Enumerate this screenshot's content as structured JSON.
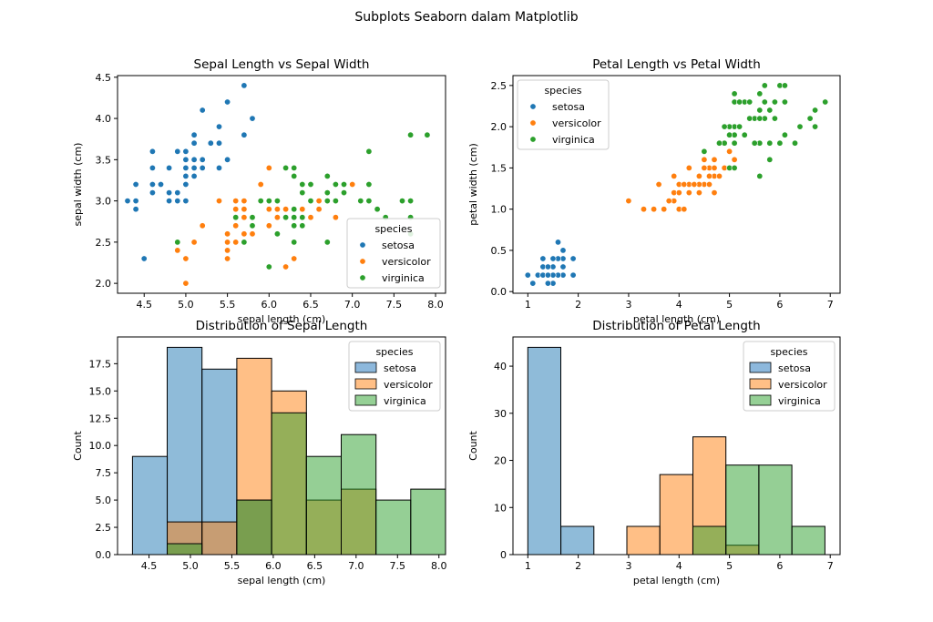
{
  "figure": {
    "suptitle": "Subplots Seaborn dalam Matplotlib"
  },
  "colors": {
    "setosa": "#1f77b4",
    "versicolor": "#ff7f0e",
    "virginica": "#2ca02c",
    "setosa_hist": "#8db8dc",
    "versicolor_hist": "#ffbf86",
    "virginica_hist": "#95d095"
  },
  "chart_data": [
    {
      "type": "scatter",
      "title": "Sepal Length vs Sepal Width",
      "xlabel": "sepal length (cm)",
      "ylabel": "sepal width (cm)",
      "xlim": [
        4.18,
        8.12
      ],
      "ylim": [
        1.88,
        4.52
      ],
      "xticks": [
        "4.5",
        "5.0",
        "5.5",
        "6.0",
        "6.5",
        "7.0",
        "7.5",
        "8.0"
      ],
      "yticks": [
        "2.0",
        "2.5",
        "3.0",
        "3.5",
        "4.0",
        "4.5"
      ],
      "legend": {
        "title": "species",
        "placement": "lower right",
        "entries": [
          "setosa",
          "versicolor",
          "virginica"
        ]
      },
      "series": [
        {
          "name": "setosa",
          "x": [
            5.1,
            4.9,
            4.7,
            4.6,
            5.0,
            5.4,
            4.6,
            5.0,
            4.4,
            4.9,
            5.4,
            4.8,
            4.8,
            4.3,
            5.8,
            5.7,
            5.4,
            5.1,
            5.7,
            5.1,
            5.4,
            5.1,
            4.6,
            5.1,
            4.8,
            5.0,
            5.0,
            5.2,
            5.2,
            4.7,
            4.8,
            5.4,
            5.2,
            5.5,
            4.9,
            5.0,
            5.5,
            4.9,
            4.4,
            5.1,
            5.0,
            4.5,
            4.4,
            5.0,
            5.1,
            4.8,
            5.1,
            4.6,
            5.3,
            5.0
          ],
          "y": [
            3.5,
            3.0,
            3.2,
            3.1,
            3.6,
            3.9,
            3.4,
            3.4,
            2.9,
            3.1,
            3.7,
            3.4,
            3.0,
            3.0,
            4.0,
            4.4,
            3.9,
            3.5,
            3.8,
            3.8,
            3.4,
            3.7,
            3.6,
            3.3,
            3.4,
            3.0,
            3.4,
            3.5,
            3.4,
            3.2,
            3.1,
            3.4,
            4.1,
            4.2,
            3.1,
            3.2,
            3.5,
            3.6,
            3.0,
            3.4,
            3.5,
            2.3,
            3.2,
            3.5,
            3.8,
            3.0,
            3.8,
            3.2,
            3.7,
            3.3
          ]
        },
        {
          "name": "versicolor",
          "x": [
            7.0,
            6.4,
            6.9,
            5.5,
            6.5,
            5.7,
            6.3,
            4.9,
            6.6,
            5.2,
            5.0,
            5.9,
            6.0,
            6.1,
            5.6,
            6.7,
            5.6,
            5.8,
            6.2,
            5.6,
            5.9,
            6.1,
            6.3,
            6.1,
            6.4,
            6.6,
            6.8,
            6.7,
            6.0,
            5.7,
            5.5,
            5.5,
            5.8,
            6.0,
            5.4,
            6.0,
            6.7,
            6.3,
            5.6,
            5.5,
            5.5,
            6.1,
            5.8,
            5.0,
            5.6,
            5.7,
            5.7,
            6.2,
            5.1,
            5.7
          ],
          "y": [
            3.2,
            3.2,
            3.1,
            2.3,
            2.8,
            2.8,
            3.3,
            2.4,
            2.9,
            2.7,
            2.0,
            3.0,
            2.2,
            2.9,
            2.9,
            3.1,
            3.0,
            2.7,
            2.2,
            2.5,
            3.2,
            2.8,
            2.5,
            2.8,
            2.9,
            3.0,
            2.8,
            3.0,
            2.9,
            2.6,
            2.4,
            2.4,
            2.7,
            2.7,
            3.0,
            3.4,
            3.1,
            2.3,
            3.0,
            2.5,
            2.6,
            3.0,
            2.6,
            2.3,
            2.7,
            3.0,
            2.9,
            2.9,
            2.5,
            2.8
          ]
        },
        {
          "name": "virginica",
          "x": [
            6.3,
            5.8,
            7.1,
            6.3,
            6.5,
            7.6,
            4.9,
            7.3,
            6.7,
            7.2,
            6.5,
            6.4,
            6.8,
            5.7,
            5.8,
            6.4,
            6.5,
            7.7,
            7.7,
            6.0,
            6.9,
            5.6,
            7.7,
            6.3,
            6.7,
            7.2,
            6.2,
            6.1,
            6.4,
            7.2,
            7.4,
            7.9,
            6.4,
            6.3,
            6.1,
            7.7,
            6.3,
            6.4,
            6.0,
            6.9,
            6.7,
            6.9,
            5.8,
            6.8,
            6.7,
            6.7,
            6.3,
            6.5,
            6.2,
            5.9
          ],
          "y": [
            3.3,
            2.7,
            3.0,
            2.9,
            3.0,
            3.0,
            2.5,
            2.9,
            2.5,
            3.6,
            3.2,
            2.7,
            3.0,
            2.5,
            2.8,
            3.2,
            3.0,
            3.8,
            2.6,
            2.2,
            3.2,
            2.8,
            2.8,
            2.7,
            3.3,
            3.2,
            2.8,
            3.0,
            2.8,
            3.0,
            2.8,
            3.8,
            2.8,
            2.8,
            2.6,
            3.0,
            3.4,
            3.1,
            3.0,
            3.1,
            3.1,
            3.1,
            2.7,
            3.2,
            3.3,
            3.0,
            2.5,
            3.0,
            3.4,
            3.0
          ]
        }
      ]
    },
    {
      "type": "scatter",
      "title": "Petal Length vs Petal Width",
      "xlabel": "petal length (cm)",
      "ylabel": "petal width (cm)",
      "xlim": [
        0.705,
        7.195
      ],
      "ylim": [
        -0.02,
        2.62
      ],
      "xticks": [
        "1",
        "2",
        "3",
        "4",
        "5",
        "6",
        "7"
      ],
      "yticks": [
        "0.0",
        "0.5",
        "1.0",
        "1.5",
        "2.0",
        "2.5"
      ],
      "legend": {
        "title": "species",
        "placement": "upper left",
        "entries": [
          "setosa",
          "versicolor",
          "virginica"
        ]
      },
      "series": [
        {
          "name": "setosa",
          "x": [
            1.4,
            1.4,
            1.3,
            1.5,
            1.4,
            1.7,
            1.4,
            1.5,
            1.4,
            1.5,
            1.5,
            1.6,
            1.4,
            1.1,
            1.2,
            1.5,
            1.3,
            1.4,
            1.7,
            1.5,
            1.7,
            1.5,
            1.0,
            1.7,
            1.9,
            1.6,
            1.6,
            1.5,
            1.4,
            1.6,
            1.6,
            1.5,
            1.5,
            1.4,
            1.5,
            1.2,
            1.3,
            1.4,
            1.3,
            1.5,
            1.3,
            1.3,
            1.3,
            1.6,
            1.9,
            1.4,
            1.6,
            1.4,
            1.5,
            1.4
          ],
          "y": [
            0.2,
            0.2,
            0.2,
            0.2,
            0.2,
            0.4,
            0.3,
            0.2,
            0.2,
            0.1,
            0.2,
            0.2,
            0.1,
            0.1,
            0.2,
            0.4,
            0.4,
            0.3,
            0.3,
            0.3,
            0.2,
            0.4,
            0.2,
            0.5,
            0.2,
            0.2,
            0.4,
            0.2,
            0.2,
            0.2,
            0.2,
            0.4,
            0.1,
            0.2,
            0.2,
            0.2,
            0.2,
            0.1,
            0.2,
            0.2,
            0.3,
            0.3,
            0.2,
            0.6,
            0.4,
            0.3,
            0.2,
            0.2,
            0.2,
            0.2
          ]
        },
        {
          "name": "versicolor",
          "x": [
            4.7,
            4.5,
            4.9,
            4.0,
            4.6,
            4.5,
            4.7,
            3.3,
            4.6,
            3.9,
            3.5,
            4.2,
            4.0,
            4.7,
            3.6,
            4.4,
            4.5,
            4.1,
            4.5,
            3.9,
            4.8,
            4.0,
            4.9,
            4.7,
            4.3,
            4.4,
            4.8,
            5.0,
            4.5,
            3.5,
            3.8,
            3.7,
            3.9,
            5.1,
            4.5,
            4.5,
            4.7,
            4.4,
            4.1,
            4.0,
            4.4,
            4.6,
            4.0,
            3.3,
            4.2,
            4.2,
            4.2,
            4.3,
            3.0,
            4.1
          ],
          "y": [
            1.4,
            1.5,
            1.5,
            1.3,
            1.5,
            1.3,
            1.6,
            1.0,
            1.3,
            1.4,
            1.0,
            1.5,
            1.0,
            1.4,
            1.3,
            1.4,
            1.5,
            1.0,
            1.5,
            1.1,
            1.8,
            1.3,
            1.5,
            1.2,
            1.3,
            1.4,
            1.4,
            1.7,
            1.5,
            1.0,
            1.1,
            1.0,
            1.2,
            1.6,
            1.5,
            1.6,
            1.5,
            1.3,
            1.3,
            1.3,
            1.2,
            1.4,
            1.2,
            1.0,
            1.3,
            1.2,
            1.3,
            1.3,
            1.1,
            1.3
          ]
        },
        {
          "name": "virginica",
          "x": [
            6.0,
            5.1,
            5.9,
            5.6,
            5.8,
            6.6,
            4.5,
            6.3,
            5.8,
            6.1,
            5.1,
            5.3,
            5.5,
            5.0,
            5.1,
            5.3,
            5.5,
            6.7,
            6.9,
            5.0,
            5.7,
            4.9,
            6.7,
            4.9,
            5.7,
            6.0,
            4.8,
            4.9,
            5.6,
            5.8,
            6.1,
            6.4,
            5.6,
            5.1,
            5.6,
            6.1,
            5.6,
            5.5,
            4.8,
            5.4,
            5.6,
            5.1,
            5.1,
            5.9,
            5.7,
            5.2,
            5.0,
            5.2,
            5.4,
            5.1
          ],
          "y": [
            2.5,
            1.9,
            2.1,
            1.8,
            2.2,
            2.1,
            1.7,
            1.8,
            1.8,
            2.5,
            2.0,
            1.9,
            2.1,
            2.0,
            2.4,
            2.3,
            1.8,
            2.2,
            2.3,
            1.5,
            2.3,
            2.0,
            2.0,
            1.8,
            2.1,
            1.8,
            1.8,
            1.8,
            2.1,
            1.6,
            1.9,
            2.0,
            2.2,
            1.5,
            1.4,
            2.3,
            2.4,
            1.8,
            1.8,
            2.1,
            2.4,
            2.3,
            1.9,
            2.3,
            2.5,
            2.3,
            1.9,
            2.0,
            2.3,
            1.8
          ]
        }
      ]
    },
    {
      "type": "bar",
      "title": "Distribution of Sepal Length",
      "xlabel": "sepal length (cm)",
      "ylabel": "Count",
      "xlim": [
        4.12,
        8.08
      ],
      "ylim": [
        0,
        19.95
      ],
      "xticks": [
        "4.5",
        "5.0",
        "5.5",
        "6.0",
        "6.5",
        "7.0",
        "7.5",
        "8.0"
      ],
      "yticks": [
        "0.0",
        "2.5",
        "5.0",
        "7.5",
        "10.0",
        "12.5",
        "15.0",
        "17.5"
      ],
      "bin_edges": [
        4.3,
        4.72,
        5.14,
        5.56,
        5.98,
        6.4,
        6.82,
        7.24,
        7.66,
        8.08
      ],
      "legend": {
        "title": "species",
        "placement": "upper right",
        "entries": [
          "setosa",
          "versicolor",
          "virginica"
        ]
      },
      "series": [
        {
          "name": "setosa",
          "values": [
            9,
            19,
            17,
            5,
            0,
            0,
            0,
            0,
            0
          ]
        },
        {
          "name": "versicolor",
          "values": [
            0,
            3,
            3,
            18,
            15,
            5,
            6,
            0,
            0
          ]
        },
        {
          "name": "virginica",
          "values": [
            0,
            1,
            0,
            5,
            13,
            9,
            11,
            5,
            6
          ]
        }
      ]
    },
    {
      "type": "bar",
      "title": "Distribution of Petal Length",
      "xlabel": "petal length (cm)",
      "ylabel": "Count",
      "xlim": [
        0.705,
        7.195
      ],
      "ylim": [
        0,
        46.2
      ],
      "xticks": [
        "1",
        "2",
        "3",
        "4",
        "5",
        "6",
        "7"
      ],
      "yticks": [
        "0",
        "10",
        "20",
        "30",
        "40"
      ],
      "bin_edges": [
        1.0,
        1.655,
        2.31,
        2.965,
        3.62,
        4.275,
        4.93,
        5.585,
        6.24,
        6.895
      ],
      "legend": {
        "title": "species",
        "placement": "upper right",
        "entries": [
          "setosa",
          "versicolor",
          "virginica"
        ]
      },
      "series": [
        {
          "name": "setosa",
          "values": [
            44,
            6,
            0,
            0,
            0,
            0,
            0,
            0,
            0
          ]
        },
        {
          "name": "versicolor",
          "values": [
            0,
            0,
            0,
            6,
            17,
            25,
            2,
            0,
            0
          ]
        },
        {
          "name": "virginica",
          "values": [
            0,
            0,
            0,
            0,
            0,
            6,
            19,
            19,
            6
          ]
        }
      ]
    }
  ]
}
